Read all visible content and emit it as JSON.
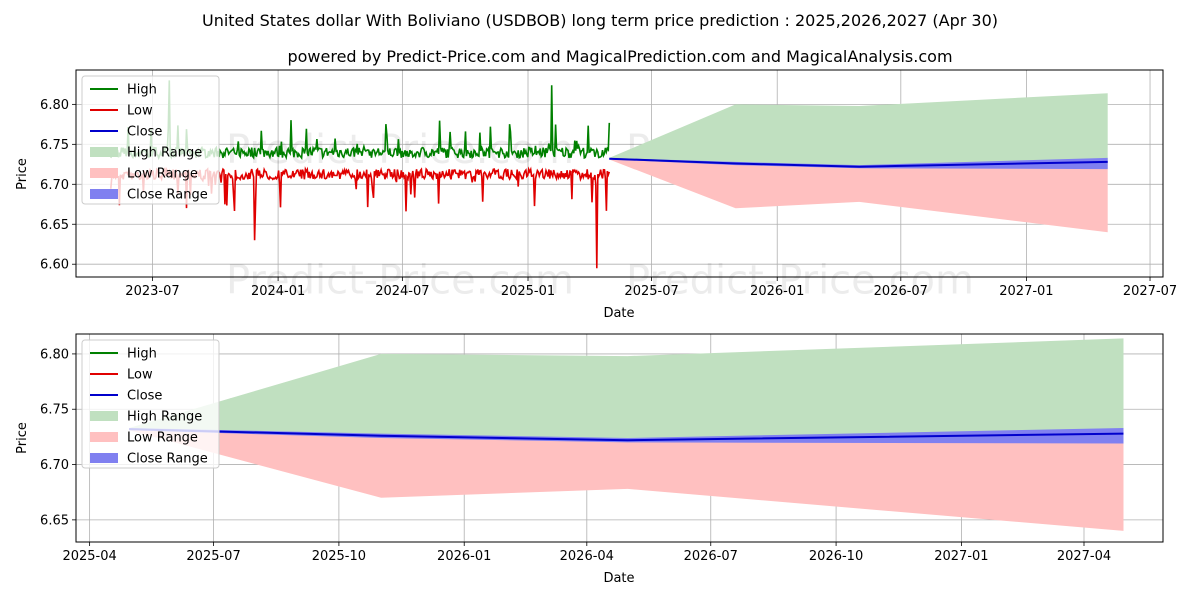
{
  "title": "United States dollar With Boliviano (USDBOB) long term price prediction : 2025,2026,2027 (Apr 30)",
  "subtitle": "powered by Predict-Price.com and MagicalPrediction.com and MagicalAnalysis.com",
  "watermark": "Predict-Price.com",
  "colors": {
    "high": "#008000",
    "low": "#e00000",
    "close": "#0000cc",
    "high_range": "#c0e0c0",
    "low_range": "#ffc0c0",
    "close_range": "#8080f0"
  },
  "legend": [
    "High",
    "Low",
    "Close",
    "High Range",
    "Low Range",
    "Close Range"
  ],
  "chart_data": [
    {
      "type": "line",
      "xlabel": "Date",
      "ylabel": "Price",
      "xlim": [
        "2023-03-11",
        "2027-07-20"
      ],
      "ylim": [
        6.584,
        6.843
      ],
      "xticks": [
        "2023-07",
        "2024-01",
        "2024-07",
        "2025-01",
        "2025-07",
        "2026-01",
        "2026-07",
        "2027-01",
        "2027-07"
      ],
      "yticks": [
        "6.60",
        "6.65",
        "6.70",
        "6.75",
        "6.80"
      ],
      "grid": true,
      "legend_position": "top-left",
      "history_range": [
        "2023-05-01",
        "2025-04-30"
      ],
      "history_baseline": 6.725,
      "history_extremes": {
        "high_peak": {
          "date": "2023-07-25",
          "value": 6.83
        },
        "high_peak_2": {
          "date": "2025-02-05",
          "value": 6.824
        },
        "low_trough": {
          "date": "2025-04-12",
          "value": 6.595
        },
        "low_trough_2": {
          "date": "2023-11-28",
          "value": 6.63
        }
      },
      "forecast": {
        "dates": [
          "2025-04-30",
          "2025-11-01",
          "2026-05-01",
          "2027-04-30"
        ],
        "close": [
          6.732,
          6.726,
          6.722,
          6.728
        ],
        "close_upper": [
          6.733,
          6.728,
          6.724,
          6.733
        ],
        "close_lower": [
          6.731,
          6.724,
          6.72,
          6.719
        ],
        "high_range": [
          6.733,
          6.8,
          6.798,
          6.814
        ],
        "low_range": [
          6.731,
          6.67,
          6.678,
          6.64
        ]
      }
    },
    {
      "type": "line",
      "xlabel": "Date",
      "ylabel": "Price",
      "xlim": [
        "2025-03-22",
        "2027-05-29"
      ],
      "ylim": [
        6.63,
        6.818
      ],
      "xticks": [
        "2025-04",
        "2025-07",
        "2025-10",
        "2026-01",
        "2026-04",
        "2026-07",
        "2026-10",
        "2027-01",
        "2027-04"
      ],
      "yticks": [
        "6.65",
        "6.70",
        "6.75",
        "6.80"
      ],
      "grid": true,
      "legend_position": "top-left",
      "forecast": {
        "dates": [
          "2025-04-30",
          "2025-11-01",
          "2026-05-01",
          "2027-04-30"
        ],
        "close": [
          6.732,
          6.726,
          6.722,
          6.728
        ],
        "close_upper": [
          6.733,
          6.728,
          6.724,
          6.733
        ],
        "close_lower": [
          6.731,
          6.724,
          6.72,
          6.719
        ],
        "high_range": [
          6.733,
          6.8,
          6.798,
          6.814
        ],
        "low_range": [
          6.731,
          6.67,
          6.678,
          6.64
        ]
      }
    }
  ]
}
